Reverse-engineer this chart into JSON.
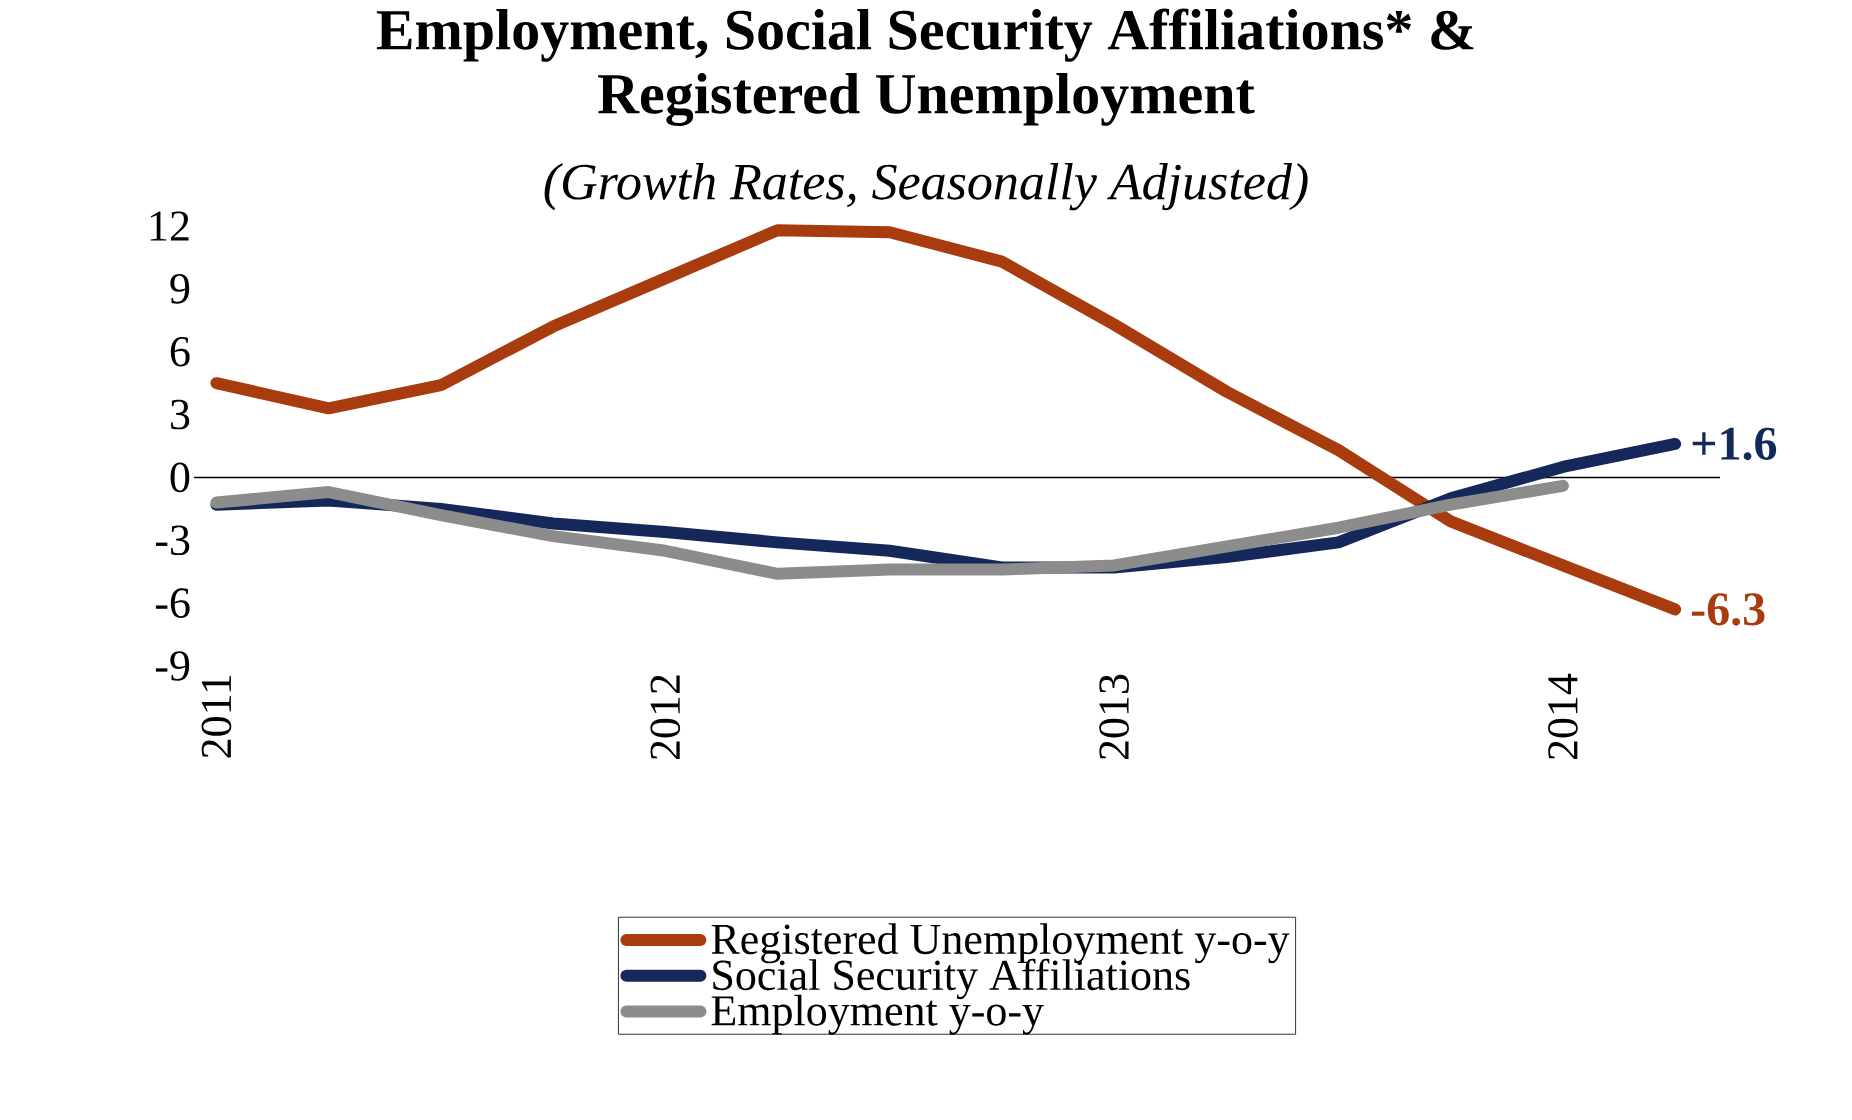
{
  "chart_data": {
    "type": "line",
    "title": "Employment, Social Security Affiliations* &\nRegistered Unemployment",
    "subtitle": "(Growth Rates, Seasonally Adjusted)",
    "x": [
      2011,
      2011.25,
      2011.5,
      2011.75,
      2012,
      2012.25,
      2012.5,
      2012.75,
      2013,
      2013.25,
      2013.5,
      2013.75,
      2014,
      2014.25
    ],
    "xlim": [
      2010.95,
      2014.35
    ],
    "xticks": [
      2011,
      2012,
      2013,
      2014
    ],
    "ylim": [
      -9,
      12
    ],
    "yticks": [
      -9,
      -6,
      -3,
      0,
      3,
      6,
      9,
      12
    ],
    "series": [
      {
        "name": "Registered Unemployment y-o-y",
        "color": "#a83c0e",
        "values": [
          4.5,
          3.3,
          4.4,
          7.2,
          9.5,
          11.8,
          11.7,
          10.3,
          7.3,
          4.1,
          1.3,
          -2.1,
          -4.2,
          -6.3
        ]
      },
      {
        "name": "Social Security Affiliations",
        "color": "#14285a",
        "values": [
          -1.3,
          -1.1,
          -1.5,
          -2.2,
          -2.6,
          -3.1,
          -3.5,
          -4.3,
          -4.3,
          -3.8,
          -3.1,
          -1.0,
          0.5,
          1.6
        ]
      },
      {
        "name": "Employment y-o-y",
        "color": "#8c8c8c",
        "values": [
          -1.2,
          -0.7,
          -1.8,
          -2.8,
          -3.5,
          -4.6,
          -4.4,
          -4.4,
          -4.2,
          -3.3,
          -2.4,
          -1.3,
          -0.4,
          null
        ]
      }
    ],
    "annotations": [
      {
        "text": "+1.6",
        "x": 2014.25,
        "y": 1.6
      },
      {
        "text": "-6.3",
        "x": 2014.25,
        "y": -6.3
      }
    ],
    "legend": "bottom",
    "marker": "none",
    "line_style": "solid"
  }
}
